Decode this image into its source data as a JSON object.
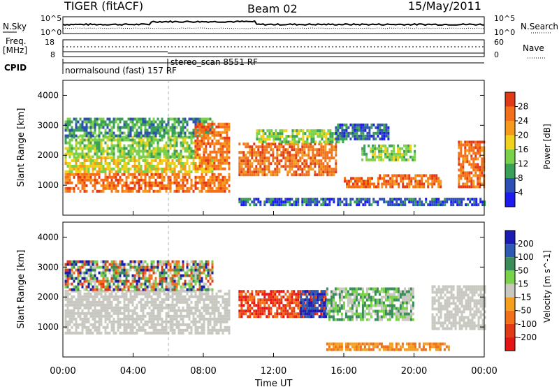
{
  "header": {
    "radar": "TIGER (fitACF)",
    "beam": "Beam 02",
    "date": "15/May/2011"
  },
  "top_panel": {
    "left_label": "N.Sky",
    "right_label": "N.Search",
    "left_top": "10^5",
    "left_bottom": "10^0",
    "right_top": "10^5",
    "right_bottom": "10^0"
  },
  "freq_panel": {
    "left_label_1": "Freq.",
    "left_label_2": "[MHz]",
    "right_label": "Nave",
    "left_top": "18",
    "left_bottom": "8",
    "right_top": "60",
    "right_bottom": "0"
  },
  "cpid_panel": {
    "label": "CPID",
    "programs": [
      "normalsound (fast) 157 RF",
      "stereo_scan 8551 RF"
    ]
  },
  "chart_data": [
    {
      "type": "heatmap",
      "quantity": "Power",
      "ylabel": "Slant Range [km]",
      "ylim": [
        0,
        4500
      ],
      "yticks": [
        1000,
        2000,
        3000,
        4000
      ],
      "xlim": [
        "00:00",
        "24:00"
      ],
      "colorbar_label": "Power [dB]",
      "colorbar_ticks": [
        4,
        8,
        12,
        16,
        20,
        24,
        28
      ],
      "colorbar_colors": [
        "#1c1cf0",
        "#2e4fb5",
        "#3aa057",
        "#7ad24a",
        "#f0d21c",
        "#f59a1c",
        "#f2701a",
        "#e23a16"
      ],
      "regions": [
        {
          "t0": 0.1,
          "t1": 9.5,
          "r0": 750,
          "r1": 1400,
          "level": 28
        },
        {
          "t0": 0.1,
          "t1": 8.5,
          "r0": 1400,
          "r1": 1900,
          "level": 20
        },
        {
          "t0": 0.1,
          "t1": 7.5,
          "r0": 1900,
          "r1": 2600,
          "level": 14
        },
        {
          "t0": 0.1,
          "t1": 8.5,
          "r0": 2600,
          "r1": 3200,
          "level": 10
        },
        {
          "t0": 7.5,
          "t1": 9.5,
          "r0": 1500,
          "r1": 3000,
          "level": 26
        },
        {
          "t0": 10.0,
          "t1": 15.5,
          "r0": 1300,
          "r1": 2400,
          "level": 26
        },
        {
          "t0": 11.0,
          "t1": 16.0,
          "r0": 2400,
          "r1": 2800,
          "level": 14
        },
        {
          "t0": 16.0,
          "t1": 18.0,
          "r0": 900,
          "r1": 1200,
          "level": 26
        },
        {
          "t0": 17.0,
          "t1": 20.0,
          "r0": 1800,
          "r1": 2300,
          "level": 14
        },
        {
          "t0": 18.0,
          "t1": 21.5,
          "r0": 900,
          "r1": 1300,
          "level": 28
        },
        {
          "t0": 15.5,
          "t1": 18.5,
          "r0": 2500,
          "r1": 3000,
          "level": 6
        },
        {
          "t0": 22.5,
          "t1": 24.0,
          "r0": 900,
          "r1": 2400,
          "level": 28
        },
        {
          "t0": 10.0,
          "t1": 24.0,
          "r0": 300,
          "r1": 500,
          "level": 8
        }
      ]
    },
    {
      "type": "heatmap",
      "quantity": "Velocity",
      "ylabel": "Slant Range [km]",
      "ylim": [
        0,
        4500
      ],
      "yticks": [
        1000,
        2000,
        3000,
        4000
      ],
      "xlim": [
        "00:00",
        "24:00"
      ],
      "xticks": [
        "00:00",
        "04:00",
        "08:00",
        "12:00",
        "16:00",
        "20:00",
        "00:00"
      ],
      "xlabel": "Time UT",
      "colorbar_label": "Velocity [m s^-1]",
      "colorbar_ticks": [
        "200",
        "100",
        "50",
        "15",
        "-15",
        "-50",
        "-100",
        "-200"
      ],
      "colorbar_colors": [
        "#1c1cb4",
        "#2e5ab4",
        "#3a8c5a",
        "#7ad24a",
        "#c8c8c0",
        "#f5a01c",
        "#f2701a",
        "#e23a16",
        "#e61414"
      ],
      "regions": [
        {
          "t0": 0.1,
          "t1": 9.5,
          "r0": 750,
          "r1": 2200,
          "level": "gray"
        },
        {
          "t0": 0.1,
          "t1": 8.5,
          "r0": 2200,
          "r1": 3200,
          "level": "mixed"
        },
        {
          "t0": 10.0,
          "t1": 15.0,
          "r0": 1300,
          "r1": 2200,
          "level": "red"
        },
        {
          "t0": 13.5,
          "t1": 15.0,
          "r0": 1300,
          "r1": 2200,
          "level": "blue"
        },
        {
          "t0": 15.0,
          "t1": 20.0,
          "r0": 1200,
          "r1": 2300,
          "level": "green"
        },
        {
          "t0": 21.0,
          "t1": 24.0,
          "r0": 900,
          "r1": 2300,
          "level": "gray"
        },
        {
          "t0": 15.0,
          "t1": 22.0,
          "r0": 200,
          "r1": 450,
          "level": "orange"
        }
      ]
    }
  ]
}
